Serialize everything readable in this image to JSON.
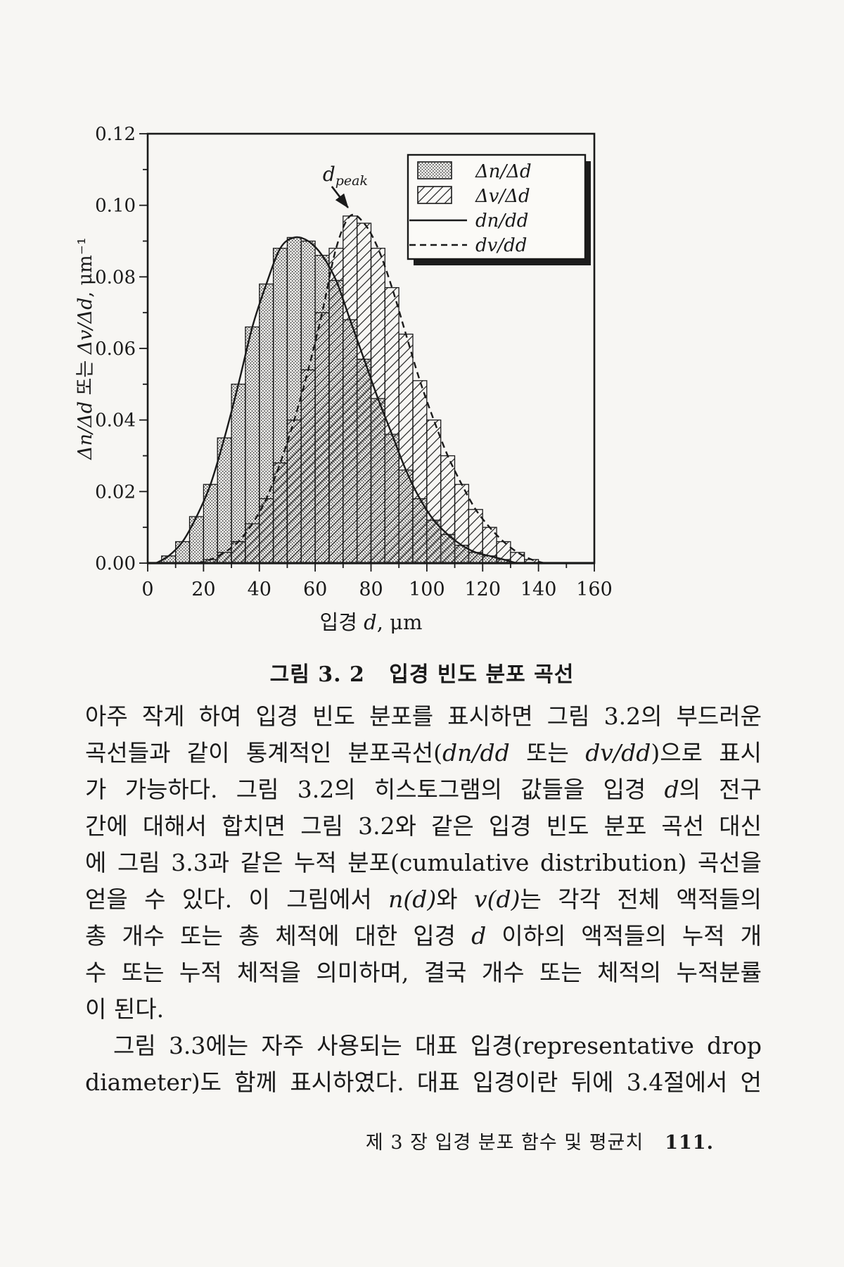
{
  "figure": {
    "caption": "그림 3. 2   입경 빈도 분포 곡선"
  },
  "chart_data": {
    "type": "bar",
    "title": "",
    "xlabel_segments": [
      {
        "t": "입경 ",
        "i": false
      },
      {
        "t": "d",
        "i": true
      },
      {
        "t": ", μm",
        "i": false
      }
    ],
    "ylabel_segments": [
      {
        "t": "Δn/Δd",
        "i": true
      },
      {
        "t": " 또는 ",
        "i": false
      },
      {
        "t": "Δv/Δd",
        "i": true
      },
      {
        "t": ", μm⁻¹",
        "i": false
      }
    ],
    "xlim": [
      0,
      160
    ],
    "ylim": [
      0,
      0.12
    ],
    "xticks": [
      0,
      20,
      40,
      60,
      80,
      100,
      120,
      140,
      160
    ],
    "x_minor": [
      10,
      30,
      50,
      70,
      90,
      110,
      130,
      150
    ],
    "yticks": [
      "0.00",
      "0.02",
      "0.04",
      "0.06",
      "0.08",
      "0.10",
      "0.12"
    ],
    "y_minor": [
      0.01,
      0.03,
      0.05,
      0.07,
      0.09,
      0.11
    ],
    "bin_width": 5,
    "grid": false,
    "legend_position": "top-right",
    "series": [
      {
        "name": "Δn/Δd",
        "type": "histogram",
        "hatch": "dots",
        "bin_start": 5,
        "values": [
          0.002,
          0.006,
          0.013,
          0.022,
          0.035,
          0.05,
          0.066,
          0.078,
          0.088,
          0.091,
          0.09,
          0.086,
          0.079,
          0.068,
          0.057,
          0.046,
          0.036,
          0.026,
          0.018,
          0.012,
          0.008,
          0.005,
          0.003,
          0.002,
          0.001
        ]
      },
      {
        "name": "Δv/Δd",
        "type": "histogram",
        "hatch": "diagonal",
        "bin_start": 20,
        "values": [
          0.001,
          0.003,
          0.006,
          0.011,
          0.018,
          0.028,
          0.04,
          0.054,
          0.07,
          0.088,
          0.097,
          0.095,
          0.088,
          0.077,
          0.064,
          0.051,
          0.04,
          0.03,
          0.022,
          0.015,
          0.01,
          0.006,
          0.003,
          0.001
        ]
      },
      {
        "name": "dn/dd",
        "type": "line",
        "dash": "solid",
        "follows": 0
      },
      {
        "name": "dv/dd",
        "type": "line",
        "dash": "dashed",
        "follows": 1
      }
    ],
    "annotation": {
      "label": "d",
      "sub": "peak",
      "x": 70,
      "y": 0.097
    }
  },
  "body": {
    "lines": [
      {
        "ind": false,
        "noj": false,
        "segments": [
          {
            "t": "아주 작게 하여 입경 빈도 분포를 표시하면 그림 3.2의 부드러운"
          }
        ]
      },
      {
        "ind": false,
        "noj": false,
        "segments": [
          {
            "t": "곡선들과 같이 통계적인 분포곡선("
          },
          {
            "t": "dn/dd",
            "i": true
          },
          {
            "t": " 또는 "
          },
          {
            "t": "dv/dd",
            "i": true
          },
          {
            "t": ")으로 표시"
          }
        ]
      },
      {
        "ind": false,
        "noj": false,
        "segments": [
          {
            "t": "가 가능하다.  그림 3.2의 히스토그램의 값들을 입경 "
          },
          {
            "t": "d",
            "i": true
          },
          {
            "t": "의 전구"
          }
        ]
      },
      {
        "ind": false,
        "noj": false,
        "segments": [
          {
            "t": "간에 대해서 합치면 그림 3.2와 같은 입경 빈도 분포 곡선 대신"
          }
        ]
      },
      {
        "ind": false,
        "noj": false,
        "segments": [
          {
            "t": "에 그림 3.3과 같은 누적 분포(cumulative distribution) 곡선을"
          }
        ]
      },
      {
        "ind": false,
        "noj": false,
        "segments": [
          {
            "t": "얻을 수 있다. 이 그림에서 "
          },
          {
            "t": "n(d)",
            "i": true
          },
          {
            "t": "와 "
          },
          {
            "t": "v(d)",
            "i": true
          },
          {
            "t": "는 각각 전체 액적들의"
          }
        ]
      },
      {
        "ind": false,
        "noj": false,
        "segments": [
          {
            "t": "총 개수 또는 총 체적에 대한 입경 "
          },
          {
            "t": "d",
            "i": true
          },
          {
            "t": " 이하의 액적들의 누적 개"
          }
        ]
      },
      {
        "ind": false,
        "noj": false,
        "segments": [
          {
            "t": "수 또는 누적 체적을 의미하며, 결국 개수 또는 체적의 누적분률"
          }
        ]
      },
      {
        "ind": false,
        "noj": true,
        "segments": [
          {
            "t": "이 된다."
          }
        ]
      },
      {
        "ind": true,
        "noj": false,
        "segments": [
          {
            "t": "그림 3.3에는 자주 사용되는 대표 입경(representative drop"
          }
        ]
      },
      {
        "ind": false,
        "noj": false,
        "segments": [
          {
            "t": "diameter)도 함께 표시하였다. 대표 입경이란 뒤에 3.4절에서 언"
          }
        ]
      }
    ]
  },
  "footer": {
    "text": "제 3 장 입경 분포 함수 및 평균치",
    "page_number": "111."
  },
  "colors": {
    "ink": "#1a1a1a",
    "paper": "#f7f6f3"
  }
}
